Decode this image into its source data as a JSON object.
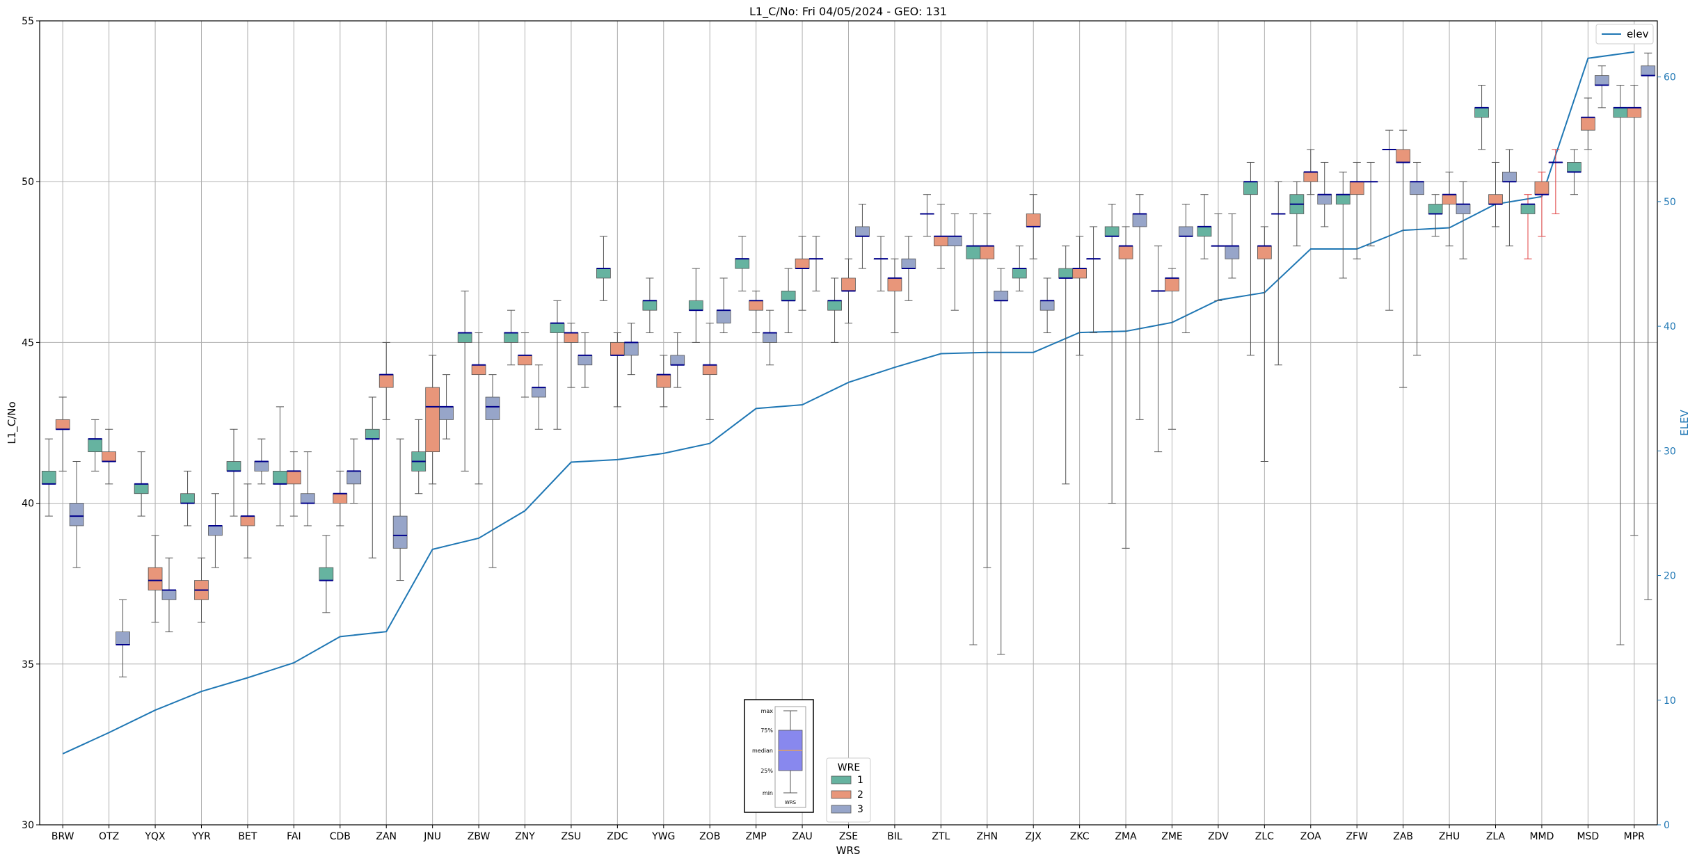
{
  "chart_data": {
    "type": "box",
    "title": "L1_C/No: Fri 04/05/2024 - GEO: 131",
    "xlabel": "WRS",
    "ylabel": "L1_C/No",
    "y2label": "ELEV",
    "ylim": [
      30,
      55
    ],
    "y2lim": [
      0,
      64.5
    ],
    "yticks": [
      30,
      35,
      40,
      45,
      50,
      55
    ],
    "y2ticks": [
      0,
      10,
      20,
      30,
      40,
      50,
      60
    ],
    "grid": true,
    "categories": [
      "BRW",
      "OTZ",
      "YQX",
      "YYR",
      "BET",
      "FAI",
      "CDB",
      "ZAN",
      "JNU",
      "ZBW",
      "ZNY",
      "ZSU",
      "ZDC",
      "YWG",
      "ZOB",
      "ZMP",
      "ZAU",
      "ZSE",
      "BIL",
      "ZTL",
      "ZHN",
      "ZJX",
      "ZKC",
      "ZMA",
      "ZME",
      "ZDV",
      "ZLC",
      "ZOA",
      "ZFW",
      "ZAB",
      "ZHU",
      "ZLA",
      "MMD",
      "MSD",
      "MPR"
    ],
    "elev": [
      5.7,
      7.4,
      9.2,
      10.7,
      11.8,
      13.0,
      15.1,
      15.5,
      22.1,
      23.0,
      25.2,
      29.1,
      29.3,
      29.8,
      30.6,
      33.4,
      33.7,
      35.5,
      36.7,
      37.8,
      37.9,
      37.9,
      39.5,
      39.6,
      40.3,
      42.1,
      42.7,
      46.2,
      46.2,
      47.7,
      47.9,
      49.8,
      50.4,
      61.5,
      62.0
    ],
    "legend": {
      "title": "WRE",
      "items": [
        "1",
        "2",
        "3"
      ],
      "line_label": "elev"
    },
    "series_colors": {
      "1": "#66b3a0",
      "2": "#e8967a",
      "3": "#97a5c9"
    },
    "line_color": "#1f77b4",
    "median_color": "#00008b",
    "boxes": [
      {
        "station": "BRW",
        "wre": "1",
        "min": 39.6,
        "q1": 40.6,
        "median": 40.6,
        "q3": 41.0,
        "max": 42.0
      },
      {
        "station": "BRW",
        "wre": "2",
        "min": 41.0,
        "q1": 42.3,
        "median": 42.3,
        "q3": 42.6,
        "max": 43.3
      },
      {
        "station": "BRW",
        "wre": "3",
        "min": 38.0,
        "q1": 39.3,
        "median": 39.6,
        "q3": 40.0,
        "max": 41.3
      },
      {
        "station": "OTZ",
        "wre": "1",
        "min": 41.0,
        "q1": 41.6,
        "median": 42.0,
        "q3": 42.0,
        "max": 42.6
      },
      {
        "station": "OTZ",
        "wre": "2",
        "min": 40.6,
        "q1": 41.3,
        "median": 41.3,
        "q3": 41.6,
        "max": 42.3
      },
      {
        "station": "OTZ",
        "wre": "3",
        "min": 34.6,
        "q1": 35.6,
        "median": 35.6,
        "q3": 36.0,
        "max": 37.0
      },
      {
        "station": "YQX",
        "wre": "1",
        "min": 39.6,
        "q1": 40.3,
        "median": 40.6,
        "q3": 40.6,
        "max": 41.6
      },
      {
        "station": "YQX",
        "wre": "2",
        "min": 36.3,
        "q1": 37.3,
        "median": 37.6,
        "q3": 38.0,
        "max": 39.0
      },
      {
        "station": "YQX",
        "wre": "3",
        "min": 36.0,
        "q1": 37.0,
        "median": 37.3,
        "q3": 37.3,
        "max": 38.3
      },
      {
        "station": "YYR",
        "wre": "1",
        "min": 39.3,
        "q1": 40.0,
        "median": 40.0,
        "q3": 40.3,
        "max": 41.0
      },
      {
        "station": "YYR",
        "wre": "2",
        "min": 36.3,
        "q1": 37.0,
        "median": 37.3,
        "q3": 37.6,
        "max": 38.3
      },
      {
        "station": "YYR",
        "wre": "3",
        "min": 38.0,
        "q1": 39.0,
        "median": 39.3,
        "q3": 39.3,
        "max": 40.3
      },
      {
        "station": "BET",
        "wre": "1",
        "min": 39.6,
        "q1": 41.0,
        "median": 41.0,
        "q3": 41.3,
        "max": 42.3
      },
      {
        "station": "BET",
        "wre": "2",
        "min": 38.3,
        "q1": 39.3,
        "median": 39.6,
        "q3": 39.6,
        "max": 40.6
      },
      {
        "station": "BET",
        "wre": "3",
        "min": 40.6,
        "q1": 41.0,
        "median": 41.3,
        "q3": 41.3,
        "max": 42.0
      },
      {
        "station": "FAI",
        "wre": "1",
        "min": 39.3,
        "q1": 40.6,
        "median": 40.6,
        "q3": 41.0,
        "max": 43.0
      },
      {
        "station": "FAI",
        "wre": "2",
        "min": 39.6,
        "q1": 40.6,
        "median": 41.0,
        "q3": 41.0,
        "max": 41.6
      },
      {
        "station": "FAI",
        "wre": "3",
        "min": 39.3,
        "q1": 40.0,
        "median": 40.0,
        "q3": 40.3,
        "max": 41.6
      },
      {
        "station": "CDB",
        "wre": "1",
        "min": 36.6,
        "q1": 37.6,
        "median": 37.6,
        "q3": 38.0,
        "max": 39.0
      },
      {
        "station": "CDB",
        "wre": "2",
        "min": 39.3,
        "q1": 40.0,
        "median": 40.3,
        "q3": 40.3,
        "max": 41.0
      },
      {
        "station": "CDB",
        "wre": "3",
        "min": 40.0,
        "q1": 40.6,
        "median": 41.0,
        "q3": 41.0,
        "max": 42.0
      },
      {
        "station": "ZAN",
        "wre": "1",
        "min": 38.3,
        "q1": 42.0,
        "median": 42.0,
        "q3": 42.3,
        "max": 43.3
      },
      {
        "station": "ZAN",
        "wre": "2",
        "min": 42.6,
        "q1": 43.6,
        "median": 44.0,
        "q3": 44.0,
        "max": 45.0
      },
      {
        "station": "ZAN",
        "wre": "3",
        "min": 37.6,
        "q1": 38.6,
        "median": 39.0,
        "q3": 39.6,
        "max": 42.0
      },
      {
        "station": "JNU",
        "wre": "1",
        "min": 40.3,
        "q1": 41.0,
        "median": 41.3,
        "q3": 41.6,
        "max": 42.6
      },
      {
        "station": "JNU",
        "wre": "2",
        "min": 40.6,
        "q1": 41.6,
        "median": 43.0,
        "q3": 43.6,
        "max": 44.6
      },
      {
        "station": "JNU",
        "wre": "3",
        "min": 42.0,
        "q1": 42.6,
        "median": 43.0,
        "q3": 43.0,
        "max": 44.0
      },
      {
        "station": "ZBW",
        "wre": "1",
        "min": 41.0,
        "q1": 45.0,
        "median": 45.3,
        "q3": 45.3,
        "max": 46.6
      },
      {
        "station": "ZBW",
        "wre": "2",
        "min": 40.6,
        "q1": 44.0,
        "median": 44.3,
        "q3": 44.3,
        "max": 45.3
      },
      {
        "station": "ZBW",
        "wre": "3",
        "min": 38.0,
        "q1": 42.6,
        "median": 43.0,
        "q3": 43.3,
        "max": 44.0
      },
      {
        "station": "ZNY",
        "wre": "1",
        "min": 44.3,
        "q1": 45.0,
        "median": 45.3,
        "q3": 45.3,
        "max": 46.0
      },
      {
        "station": "ZNY",
        "wre": "2",
        "min": 43.3,
        "q1": 44.3,
        "median": 44.6,
        "q3": 44.6,
        "max": 45.3
      },
      {
        "station": "ZNY",
        "wre": "3",
        "min": 42.3,
        "q1": 43.3,
        "median": 43.6,
        "q3": 43.6,
        "max": 44.3
      },
      {
        "station": "ZSU",
        "wre": "1",
        "min": 42.3,
        "q1": 45.3,
        "median": 45.6,
        "q3": 45.6,
        "max": 46.3
      },
      {
        "station": "ZSU",
        "wre": "2",
        "min": 43.6,
        "q1": 45.0,
        "median": 45.3,
        "q3": 45.3,
        "max": 45.6
      },
      {
        "station": "ZSU",
        "wre": "3",
        "min": 43.6,
        "q1": 44.3,
        "median": 44.6,
        "q3": 44.6,
        "max": 45.3
      },
      {
        "station": "ZDC",
        "wre": "1",
        "min": 46.3,
        "q1": 47.0,
        "median": 47.3,
        "q3": 47.3,
        "max": 48.3
      },
      {
        "station": "ZDC",
        "wre": "2",
        "min": 43.0,
        "q1": 44.6,
        "median": 44.6,
        "q3": 45.0,
        "max": 45.3
      },
      {
        "station": "ZDC",
        "wre": "3",
        "min": 44.0,
        "q1": 44.6,
        "median": 45.0,
        "q3": 45.0,
        "max": 45.6
      },
      {
        "station": "YWG",
        "wre": "1",
        "min": 45.3,
        "q1": 46.0,
        "median": 46.3,
        "q3": 46.3,
        "max": 47.0
      },
      {
        "station": "YWG",
        "wre": "2",
        "min": 43.0,
        "q1": 43.6,
        "median": 44.0,
        "q3": 44.0,
        "max": 44.6
      },
      {
        "station": "YWG",
        "wre": "3",
        "min": 43.6,
        "q1": 44.3,
        "median": 44.3,
        "q3": 44.6,
        "max": 45.3
      },
      {
        "station": "ZOB",
        "wre": "1",
        "min": 45.0,
        "q1": 46.0,
        "median": 46.0,
        "q3": 46.3,
        "max": 47.3
      },
      {
        "station": "ZOB",
        "wre": "2",
        "min": 42.6,
        "q1": 44.0,
        "median": 44.3,
        "q3": 44.3,
        "max": 45.6
      },
      {
        "station": "ZOB",
        "wre": "3",
        "min": 45.3,
        "q1": 45.6,
        "median": 46.0,
        "q3": 46.0,
        "max": 47.0
      },
      {
        "station": "ZMP",
        "wre": "1",
        "min": 46.6,
        "q1": 47.3,
        "median": 47.6,
        "q3": 47.6,
        "max": 48.3
      },
      {
        "station": "ZMP",
        "wre": "2",
        "min": 45.3,
        "q1": 46.0,
        "median": 46.3,
        "q3": 46.3,
        "max": 46.6
      },
      {
        "station": "ZMP",
        "wre": "3",
        "min": 44.3,
        "q1": 45.0,
        "median": 45.3,
        "q3": 45.3,
        "max": 46.0
      },
      {
        "station": "ZAU",
        "wre": "1",
        "min": 45.3,
        "q1": 46.3,
        "median": 46.3,
        "q3": 46.6,
        "max": 47.3
      },
      {
        "station": "ZAU",
        "wre": "2",
        "min": 46.0,
        "q1": 47.3,
        "median": 47.3,
        "q3": 47.6,
        "max": 48.3
      },
      {
        "station": "ZAU",
        "wre": "3",
        "min": 46.6,
        "q1": 47.6,
        "median": 47.6,
        "q3": 47.6,
        "max": 48.3
      },
      {
        "station": "ZSE",
        "wre": "1",
        "min": 45.0,
        "q1": 46.0,
        "median": 46.3,
        "q3": 46.3,
        "max": 47.0
      },
      {
        "station": "ZSE",
        "wre": "2",
        "min": 45.6,
        "q1": 46.6,
        "median": 46.6,
        "q3": 47.0,
        "max": 47.6
      },
      {
        "station": "ZSE",
        "wre": "3",
        "min": 47.3,
        "q1": 48.3,
        "median": 48.3,
        "q3": 48.6,
        "max": 49.3
      },
      {
        "station": "BIL",
        "wre": "1",
        "min": 46.6,
        "q1": 47.6,
        "median": 47.6,
        "q3": 47.6,
        "max": 48.3
      },
      {
        "station": "BIL",
        "wre": "2",
        "min": 45.3,
        "q1": 46.6,
        "median": 47.0,
        "q3": 47.0,
        "max": 47.6
      },
      {
        "station": "BIL",
        "wre": "3",
        "min": 46.3,
        "q1": 47.3,
        "median": 47.3,
        "q3": 47.6,
        "max": 48.3
      },
      {
        "station": "ZTL",
        "wre": "1",
        "min": 48.3,
        "q1": 49.0,
        "median": 49.0,
        "q3": 49.0,
        "max": 49.6
      },
      {
        "station": "ZTL",
        "wre": "2",
        "min": 47.3,
        "q1": 48.0,
        "median": 48.3,
        "q3": 48.3,
        "max": 49.3
      },
      {
        "station": "ZTL",
        "wre": "3",
        "min": 46.0,
        "q1": 48.0,
        "median": 48.3,
        "q3": 48.3,
        "max": 49.0
      },
      {
        "station": "ZHN",
        "wre": "1",
        "min": 35.6,
        "q1": 47.6,
        "median": 48.0,
        "q3": 48.0,
        "max": 49.0
      },
      {
        "station": "ZHN",
        "wre": "2",
        "min": 38.0,
        "q1": 47.6,
        "median": 48.0,
        "q3": 48.0,
        "max": 49.0
      },
      {
        "station": "ZHN",
        "wre": "3",
        "min": 35.3,
        "q1": 46.3,
        "median": 46.3,
        "q3": 46.6,
        "max": 47.3
      },
      {
        "station": "ZJX",
        "wre": "1",
        "min": 46.6,
        "q1": 47.0,
        "median": 47.3,
        "q3": 47.3,
        "max": 48.0
      },
      {
        "station": "ZJX",
        "wre": "2",
        "min": 47.6,
        "q1": 48.6,
        "median": 48.6,
        "q3": 49.0,
        "max": 49.6
      },
      {
        "station": "ZJX",
        "wre": "3",
        "min": 45.3,
        "q1": 46.0,
        "median": 46.3,
        "q3": 46.3,
        "max": 47.0
      },
      {
        "station": "ZKC",
        "wre": "1",
        "min": 40.6,
        "q1": 47.0,
        "median": 47.0,
        "q3": 47.3,
        "max": 48.0
      },
      {
        "station": "ZKC",
        "wre": "2",
        "min": 44.6,
        "q1": 47.0,
        "median": 47.3,
        "q3": 47.3,
        "max": 48.3
      },
      {
        "station": "ZKC",
        "wre": "3",
        "min": 45.3,
        "q1": 47.6,
        "median": 47.6,
        "q3": 47.6,
        "max": 48.6
      },
      {
        "station": "ZMA",
        "wre": "1",
        "min": 40.0,
        "q1": 48.3,
        "median": 48.3,
        "q3": 48.6,
        "max": 49.3
      },
      {
        "station": "ZMA",
        "wre": "2",
        "min": 38.6,
        "q1": 47.6,
        "median": 48.0,
        "q3": 48.0,
        "max": 48.6
      },
      {
        "station": "ZMA",
        "wre": "3",
        "min": 42.6,
        "q1": 48.6,
        "median": 49.0,
        "q3": 49.0,
        "max": 49.6
      },
      {
        "station": "ZME",
        "wre": "1",
        "min": 41.6,
        "q1": 46.6,
        "median": 46.6,
        "q3": 46.6,
        "max": 48.0
      },
      {
        "station": "ZME",
        "wre": "2",
        "min": 42.3,
        "q1": 46.6,
        "median": 47.0,
        "q3": 47.0,
        "max": 47.3
      },
      {
        "station": "ZME",
        "wre": "3",
        "min": 45.3,
        "q1": 48.3,
        "median": 48.3,
        "q3": 48.6,
        "max": 49.3
      },
      {
        "station": "ZDV",
        "wre": "1",
        "min": 47.6,
        "q1": 48.3,
        "median": 48.6,
        "q3": 48.6,
        "max": 49.6
      },
      {
        "station": "ZDV",
        "wre": "2",
        "min": 46.3,
        "q1": 48.0,
        "median": 48.0,
        "q3": 48.0,
        "max": 49.0
      },
      {
        "station": "ZDV",
        "wre": "3",
        "min": 47.0,
        "q1": 47.6,
        "median": 48.0,
        "q3": 48.0,
        "max": 49.0
      },
      {
        "station": "ZLC",
        "wre": "1",
        "min": 44.6,
        "q1": 49.6,
        "median": 50.0,
        "q3": 50.0,
        "max": 50.6
      },
      {
        "station": "ZLC",
        "wre": "2",
        "min": 41.3,
        "q1": 47.6,
        "median": 48.0,
        "q3": 48.0,
        "max": 48.6
      },
      {
        "station": "ZLC",
        "wre": "3",
        "min": 44.3,
        "q1": 49.0,
        "median": 49.0,
        "q3": 49.0,
        "max": 50.0
      },
      {
        "station": "ZOA",
        "wre": "1",
        "min": 48.0,
        "q1": 49.0,
        "median": 49.3,
        "q3": 49.6,
        "max": 50.0
      },
      {
        "station": "ZOA",
        "wre": "2",
        "min": 49.6,
        "q1": 50.0,
        "median": 50.3,
        "q3": 50.3,
        "max": 51.0
      },
      {
        "station": "ZOA",
        "wre": "3",
        "min": 48.6,
        "q1": 49.3,
        "median": 49.6,
        "q3": 49.6,
        "max": 50.6
      },
      {
        "station": "ZFW",
        "wre": "1",
        "min": 47.0,
        "q1": 49.3,
        "median": 49.6,
        "q3": 49.6,
        "max": 50.3
      },
      {
        "station": "ZFW",
        "wre": "2",
        "min": 47.6,
        "q1": 49.6,
        "median": 50.0,
        "q3": 50.0,
        "max": 50.6
      },
      {
        "station": "ZFW",
        "wre": "3",
        "min": 48.0,
        "q1": 50.0,
        "median": 50.0,
        "q3": 50.0,
        "max": 50.6
      },
      {
        "station": "ZAB",
        "wre": "1",
        "min": 46.0,
        "q1": 51.0,
        "median": 51.0,
        "q3": 51.0,
        "max": 51.6
      },
      {
        "station": "ZAB",
        "wre": "2",
        "min": 43.6,
        "q1": 50.6,
        "median": 50.6,
        "q3": 51.0,
        "max": 51.6
      },
      {
        "station": "ZAB",
        "wre": "3",
        "min": 44.6,
        "q1": 49.6,
        "median": 50.0,
        "q3": 50.0,
        "max": 50.6
      },
      {
        "station": "ZHU",
        "wre": "1",
        "min": 48.3,
        "q1": 49.0,
        "median": 49.0,
        "q3": 49.3,
        "max": 49.6
      },
      {
        "station": "ZHU",
        "wre": "2",
        "min": 48.0,
        "q1": 49.3,
        "median": 49.6,
        "q3": 49.6,
        "max": 50.3
      },
      {
        "station": "ZHU",
        "wre": "3",
        "min": 47.6,
        "q1": 49.0,
        "median": 49.3,
        "q3": 49.3,
        "max": 50.0
      },
      {
        "station": "ZLA",
        "wre": "1",
        "min": 51.0,
        "q1": 52.0,
        "median": 52.3,
        "q3": 52.3,
        "max": 53.0
      },
      {
        "station": "ZLA",
        "wre": "2",
        "min": 48.6,
        "q1": 49.3,
        "median": 49.3,
        "q3": 49.6,
        "max": 50.6
      },
      {
        "station": "ZLA",
        "wre": "3",
        "min": 48.0,
        "q1": 50.0,
        "median": 50.0,
        "q3": 50.3,
        "max": 51.0
      },
      {
        "station": "MMD",
        "wre": "1",
        "min": 47.6,
        "q1": 49.0,
        "median": 49.3,
        "q3": 49.3,
        "max": 49.6,
        "whisker_color": "#e04040"
      },
      {
        "station": "MMD",
        "wre": "2",
        "min": 48.3,
        "q1": 49.6,
        "median": 49.6,
        "q3": 50.0,
        "max": 50.3,
        "whisker_color": "#e04040"
      },
      {
        "station": "MMD",
        "wre": "3",
        "min": 49.0,
        "q1": 50.6,
        "median": 50.6,
        "q3": 50.6,
        "max": 51.0,
        "whisker_color": "#e04040"
      },
      {
        "station": "MSD",
        "wre": "1",
        "min": 49.6,
        "q1": 50.3,
        "median": 50.3,
        "q3": 50.6,
        "max": 51.0
      },
      {
        "station": "MSD",
        "wre": "2",
        "min": 51.0,
        "q1": 51.6,
        "median": 52.0,
        "q3": 52.0,
        "max": 52.6
      },
      {
        "station": "MSD",
        "wre": "3",
        "min": 52.3,
        "q1": 53.0,
        "median": 53.0,
        "q3": 53.3,
        "max": 53.6
      },
      {
        "station": "MPR",
        "wre": "1",
        "min": 35.6,
        "q1": 52.0,
        "median": 52.3,
        "q3": 52.3,
        "max": 53.0
      },
      {
        "station": "MPR",
        "wre": "2",
        "min": 39.0,
        "q1": 52.0,
        "median": 52.3,
        "q3": 52.3,
        "max": 53.0
      },
      {
        "station": "MPR",
        "wre": "3",
        "min": 37.0,
        "q1": 53.3,
        "median": 53.3,
        "q3": 53.6,
        "max": 54.0
      }
    ],
    "key_box": {
      "labels": [
        "max",
        "75%",
        "median",
        "25%",
        "min"
      ],
      "xlabel": "WRS"
    }
  }
}
